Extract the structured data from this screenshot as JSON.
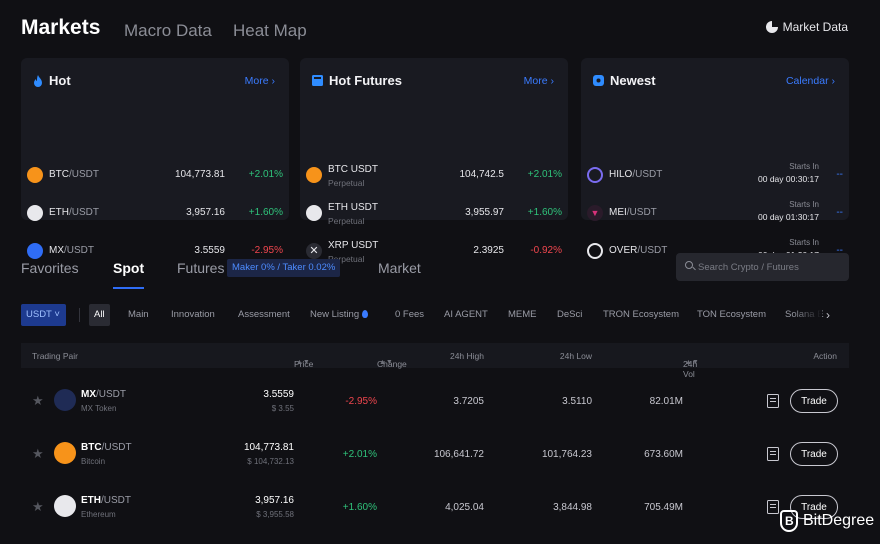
{
  "header": {
    "title": "Markets",
    "tabs": [
      "Macro Data",
      "Heat Map"
    ],
    "market_data": "Market Data"
  },
  "cards": [
    {
      "title": "Hot",
      "link": "More",
      "icon": "flame-icon",
      "rows": [
        {
          "base": "BTC",
          "quote": "/USDT",
          "price": "104,773.81",
          "change": "+2.01%",
          "dir": "up",
          "color": "#f7931a"
        },
        {
          "base": "ETH",
          "quote": "/USDT",
          "price": "3,957.16",
          "change": "+1.60%",
          "dir": "up",
          "color": "#e8e8ec"
        },
        {
          "base": "MX",
          "quote": "/USDT",
          "price": "3.5559",
          "change": "-2.95%",
          "dir": "down",
          "color": "#2f6df6"
        }
      ]
    },
    {
      "title": "Hot Futures",
      "link": "More",
      "icon": "futures-icon",
      "rows": [
        {
          "name": "BTC USDT",
          "sub": "Perpetual",
          "price": "104,742.5",
          "change": "+2.01%",
          "dir": "up",
          "color": "#f7931a"
        },
        {
          "name": "ETH USDT",
          "sub": "Perpetual",
          "price": "3,955.97",
          "change": "+1.60%",
          "dir": "up",
          "color": "#e8e8ec"
        },
        {
          "name": "XRP USDT",
          "sub": "Perpetual",
          "price": "2.3925",
          "change": "-0.92%",
          "dir": "down",
          "color": "#2a2b33"
        }
      ]
    },
    {
      "title": "Newest",
      "link": "Calendar",
      "icon": "new-icon",
      "rows": [
        {
          "base": "HILO",
          "quote": "/USDT",
          "label": "Starts In",
          "time": "00 day 00:30:17",
          "dash": "--",
          "color": "#7a6cf0"
        },
        {
          "base": "MEI",
          "quote": "/USDT",
          "label": "Starts In",
          "time": "00 day 01:30:17",
          "dash": "--",
          "color": "#d7327a"
        },
        {
          "base": "OVER",
          "quote": "/USDT",
          "label": "Starts In",
          "time": "00 day 01:30:17",
          "dash": "--",
          "color": "#e8e8ec"
        }
      ]
    }
  ],
  "market_tabs": {
    "favorites": "Favorites",
    "spot": "Spot",
    "futures": "Futures",
    "fee_badge": "Maker 0% / Taker 0.02%",
    "market": "Market"
  },
  "search": {
    "placeholder": "Search Crypto / Futures"
  },
  "quote_select": "USDT",
  "filters": [
    "All",
    "Main",
    "Innovation",
    "Assessment",
    "New Listing",
    "0 Fees",
    "AI AGENT",
    "MEME",
    "DeSci",
    "TRON Ecosystem",
    "TON Ecosystem",
    "Solana E"
  ],
  "table": {
    "columns": {
      "pair": "Trading Pair",
      "price": "Price",
      "change": "Change",
      "high": "24h High",
      "low": "24h Low",
      "vol": "24h Vol",
      "action": "Action"
    },
    "rows": [
      {
        "base": "MX",
        "quote": "/USDT",
        "full": "MX Token",
        "price": "3.5559",
        "usd": "$ 3.55",
        "change": "-2.95%",
        "dir": "down",
        "high": "3.7205",
        "low": "3.5110",
        "vol": "82.01M",
        "action": "Trade",
        "color": "#2f6df6"
      },
      {
        "base": "BTC",
        "quote": "/USDT",
        "full": "Bitcoin",
        "price": "104,773.81",
        "usd": "$ 104,732.13",
        "change": "+2.01%",
        "dir": "up",
        "high": "106,641.72",
        "low": "101,764.23",
        "vol": "673.60M",
        "action": "Trade",
        "color": "#f7931a"
      },
      {
        "base": "ETH",
        "quote": "/USDT",
        "full": "Ethereum",
        "price": "3,957.16",
        "usd": "$ 3,955.58",
        "change": "+1.60%",
        "dir": "up",
        "high": "4,025.04",
        "low": "3,844.98",
        "vol": "705.49M",
        "action": "Trade",
        "color": "#e8e8ec"
      }
    ]
  },
  "watermark": "BitDegree"
}
